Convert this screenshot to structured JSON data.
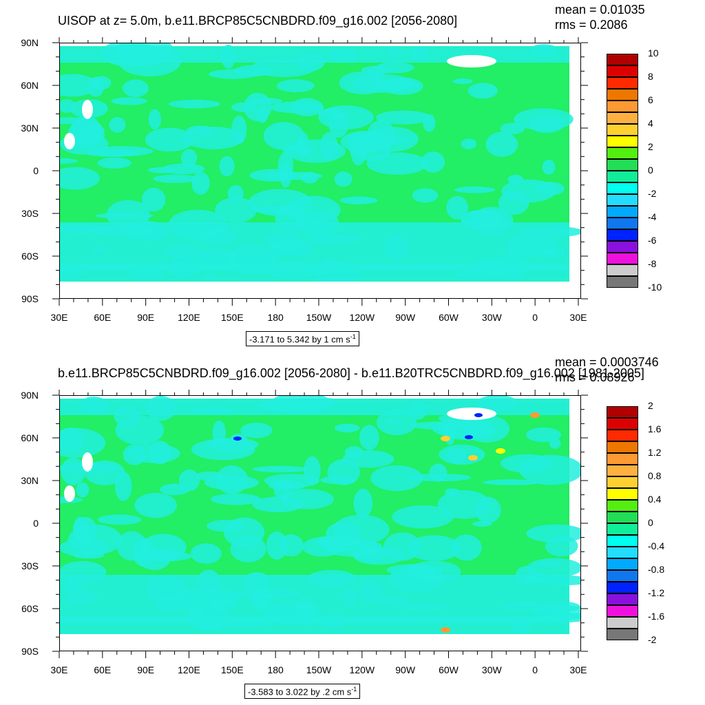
{
  "chart_data": [
    {
      "type": "heatmap",
      "title": "UISOP at z=   5.0m, b.e11.BRCP85C5CNBDRD.f09_g16.002 [2056-2080]",
      "stats": {
        "mean": "mean = 0.01035",
        "rms": "rms = 0.2086"
      },
      "caption": {
        "text": "-3.171 to 5.342 by 1 cm s",
        "unit_exp": "-1"
      },
      "xticks": [
        "30E",
        "60E",
        "90E",
        "120E",
        "150E",
        "180",
        "150W",
        "120W",
        "90W",
        "60W",
        "30W",
        "0",
        "30E"
      ],
      "yticks": [
        "90N",
        "60N",
        "30N",
        "0",
        "30S",
        "60S",
        "90S"
      ],
      "colorbar": {
        "labels": [
          "10",
          "8",
          "6",
          "4",
          "2",
          "0",
          "-2",
          "-4",
          "-6",
          "-8",
          "-10"
        ],
        "colors": [
          "#b00000",
          "#dd0000",
          "#ff2a00",
          "#ee7700",
          "#ff9933",
          "#ffb040",
          "#ffd030",
          "#ffff00",
          "#55ee11",
          "#22dd55",
          "#11ee99",
          "#00ffee",
          "#22ddff",
          "#00aaff",
          "#1177ee",
          "#0022ff",
          "#8811dd",
          "#ee11dd",
          "#cccccc",
          "#777777"
        ]
      },
      "dominant_colors": {
        "positive_small": "#22ee66",
        "negative_small": "#22eedd"
      }
    },
    {
      "type": "heatmap",
      "title": "b.e11.BRCP85C5CNBDRD.f09_g16.002 [2056-2080] - b.e11.B20TRC5CNBDRD.f09_g16.002 [1981-2005]",
      "stats": {
        "mean": "mean = 0.0003746",
        "rms": "rms = 0.08926"
      },
      "caption": {
        "text": "-3.583 to 3.022 by .2 cm s",
        "unit_exp": "-1"
      },
      "xticks": [
        "30E",
        "60E",
        "90E",
        "120E",
        "150E",
        "180",
        "150W",
        "120W",
        "90W",
        "60W",
        "30W",
        "0",
        "30E"
      ],
      "yticks": [
        "90N",
        "60N",
        "30N",
        "0",
        "30S",
        "60S",
        "90S"
      ],
      "colorbar": {
        "labels": [
          "2",
          "1.6",
          "1.2",
          "0.8",
          "0.4",
          "0",
          "-0.4",
          "-0.8",
          "-1.2",
          "-1.6",
          "-2"
        ],
        "colors": [
          "#b00000",
          "#dd0000",
          "#ff2a00",
          "#ee7700",
          "#ff9933",
          "#ffb040",
          "#ffd030",
          "#ffff00",
          "#55ee11",
          "#22dd55",
          "#11ee99",
          "#00ffee",
          "#22ddff",
          "#00aaff",
          "#1177ee",
          "#0022ff",
          "#8811dd",
          "#ee11dd",
          "#cccccc",
          "#777777"
        ]
      },
      "dominant_colors": {
        "positive_small": "#22ee66",
        "negative_small": "#22eedd"
      }
    }
  ]
}
